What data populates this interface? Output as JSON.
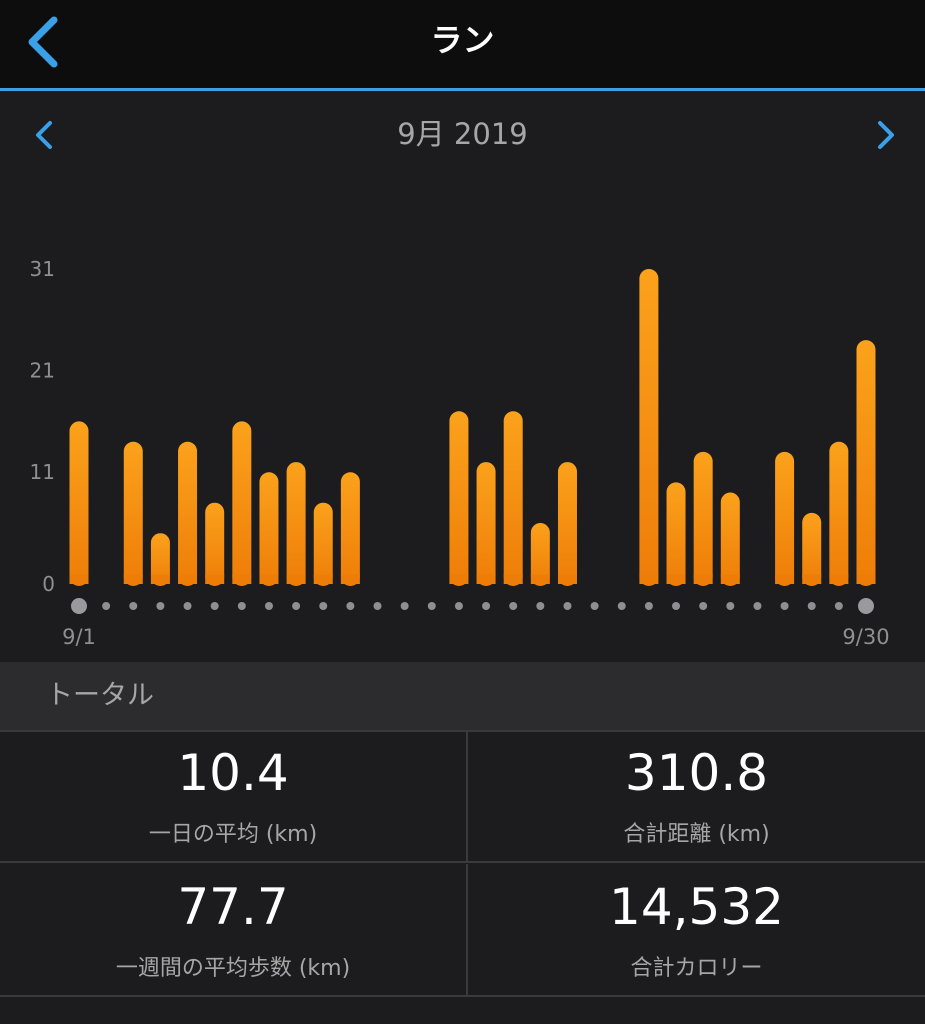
{
  "header": {
    "title": "ラン",
    "back_icon": "chevron-left-icon",
    "accent": "#3aa0e8"
  },
  "period": {
    "label": "9月 2019",
    "prev_icon": "chevron-left-icon",
    "next_icon": "chevron-right-icon"
  },
  "chart_data": {
    "type": "bar",
    "x": [
      1,
      2,
      3,
      4,
      5,
      6,
      7,
      8,
      9,
      10,
      11,
      12,
      13,
      14,
      15,
      16,
      17,
      18,
      19,
      20,
      21,
      22,
      23,
      24,
      25,
      26,
      27,
      28,
      29,
      30
    ],
    "values": [
      16,
      0,
      14,
      5,
      14,
      8,
      16,
      11,
      12,
      8,
      11,
      0,
      0,
      0,
      17,
      12,
      17,
      6,
      12,
      0,
      0,
      31,
      10,
      13,
      9,
      0,
      13,
      7,
      14,
      24
    ],
    "yticks": [
      0,
      11,
      21,
      31
    ],
    "ylim": [
      0,
      31
    ],
    "xlabels": {
      "start": "9/1",
      "end": "9/30"
    },
    "bar_color": "#f59a12",
    "grid": false
  },
  "totals": {
    "title": "トータル",
    "stats": [
      {
        "value": "10.4",
        "label": "一日の平均 (km)"
      },
      {
        "value": "310.8",
        "label": "合計距離 (km)"
      },
      {
        "value": "77.7",
        "label": "一週間の平均歩数 (km)"
      },
      {
        "value": "14,532",
        "label": "合計カロリー"
      }
    ]
  }
}
